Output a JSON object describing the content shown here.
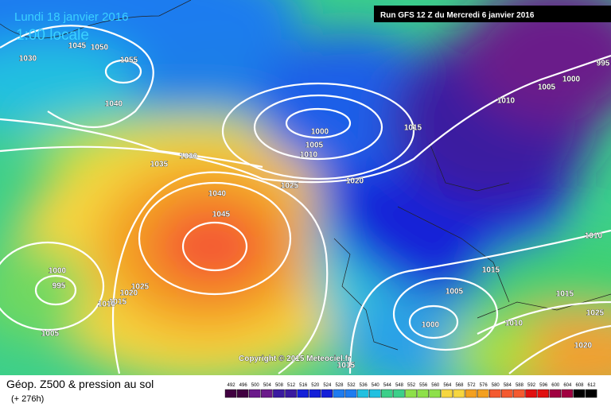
{
  "header": {
    "date": "Lundi 18 janvier 2016",
    "time": "1:00 locale",
    "run": "Run GFS 12 Z du Mercredi 6 janvier 2016"
  },
  "copyright": "Copyright © 2015 Meteociel.fr",
  "footer": {
    "title": "Géop. Z500 & pression au sol",
    "lead": "(+ 276h)"
  },
  "scale": [
    492,
    496,
    500,
    504,
    508,
    512,
    516,
    520,
    524,
    528,
    532,
    536,
    540,
    544,
    548,
    552,
    556,
    560,
    564,
    568,
    572,
    576,
    580,
    584,
    588,
    592,
    596,
    600,
    604,
    608,
    612
  ],
  "isobars": [
    1030,
    1045,
    1050,
    1055,
    1040,
    1035,
    1030,
    1040,
    1045,
    1025,
    1020,
    1000,
    1005,
    1010,
    1015,
    1010,
    1005,
    1000,
    995,
    1010,
    1015,
    1015,
    1025,
    1020,
    1010,
    1005,
    1000,
    1015,
    1000,
    995,
    1005,
    1025,
    1020,
    1015,
    1010
  ]
}
